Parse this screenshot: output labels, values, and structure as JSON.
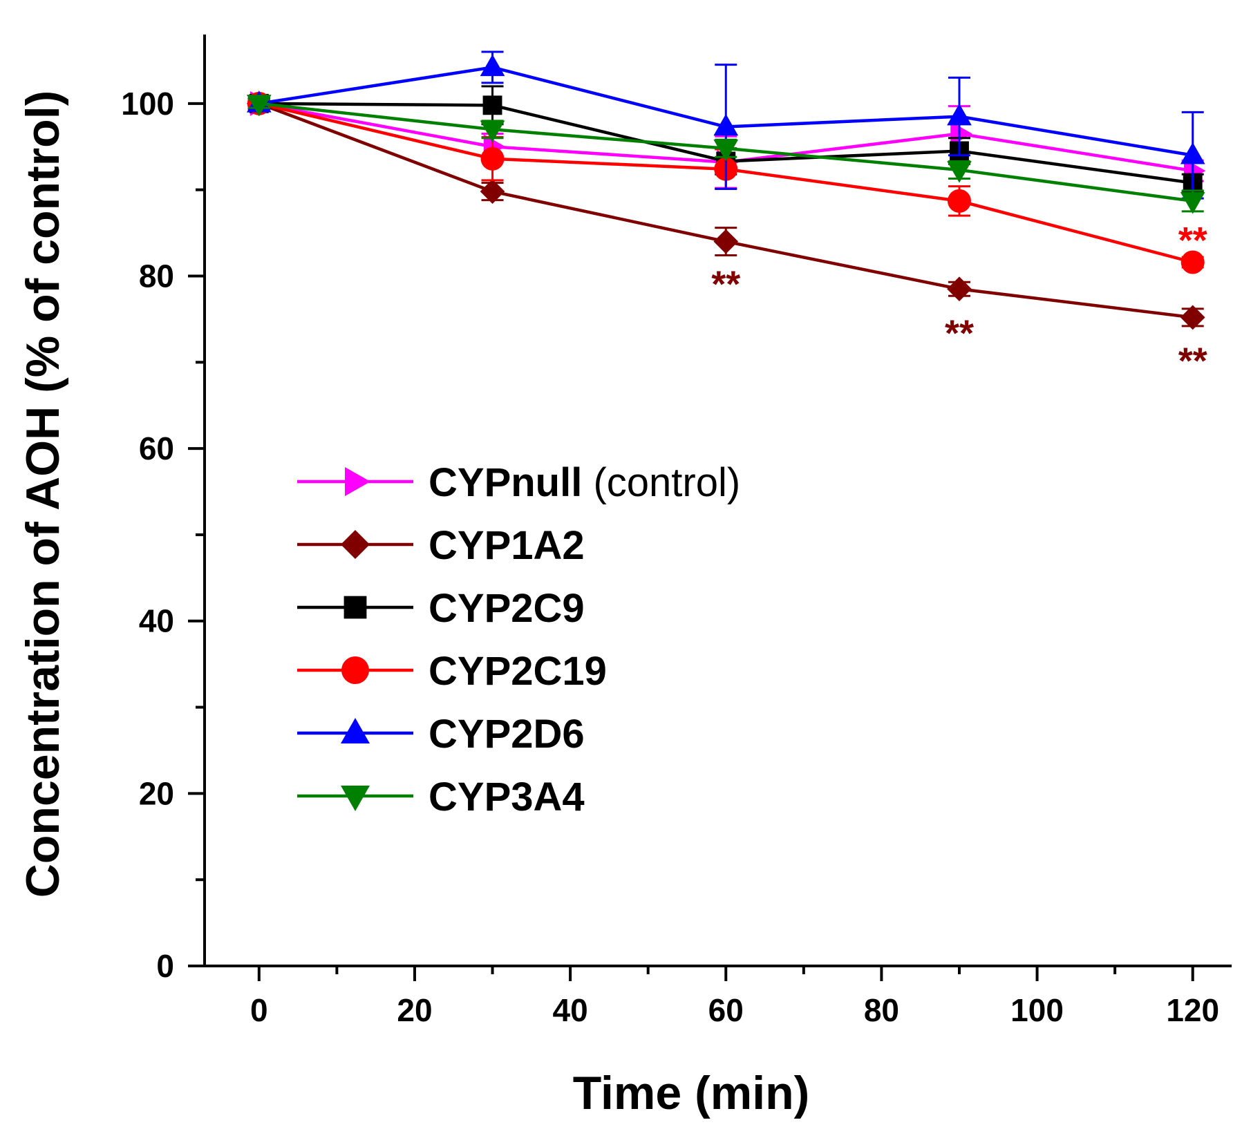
{
  "chart_data": {
    "type": "line",
    "title": "",
    "xlabel": "Time (min)",
    "ylabel": "Concentration of AOH (% of control)",
    "xlim": [
      -7,
      125
    ],
    "ylim": [
      0,
      108
    ],
    "x_ticks_major": [
      0,
      20,
      40,
      60,
      80,
      100,
      120
    ],
    "x_tick_labels": [
      "0",
      "20",
      "40",
      "60",
      "80",
      "100",
      "120"
    ],
    "y_ticks_major": [
      0,
      20,
      40,
      60,
      80,
      100
    ],
    "y_tick_labels": [
      "0",
      "20",
      "40",
      "60",
      "80",
      "100"
    ],
    "x_ticks_minor": [
      10,
      30,
      50,
      70,
      90,
      110
    ],
    "y_ticks_minor": [
      10,
      30,
      50,
      70,
      90
    ],
    "grid": false,
    "legend_position": "center-left",
    "x": [
      0,
      30,
      60,
      90,
      120
    ],
    "series": [
      {
        "name": "CYPnull",
        "suffix": " (control)",
        "color": "#ff00ff",
        "marker": "triangle-right",
        "values": [
          100,
          95.0,
          93.2,
          96.5,
          92.2
        ],
        "errors": [
          0.6,
          1.5,
          3.0,
          3.2,
          1.2
        ]
      },
      {
        "name": "CYP1A2",
        "suffix": "",
        "color": "#800000",
        "marker": "diamond",
        "values": [
          100,
          89.8,
          84.0,
          78.5,
          75.2
        ],
        "errors": [
          0.6,
          1.0,
          1.6,
          0.8,
          1.0
        ]
      },
      {
        "name": "CYP2C9",
        "suffix": "",
        "color": "#000000",
        "marker": "square",
        "values": [
          100,
          99.8,
          93.3,
          94.5,
          90.8
        ],
        "errors": [
          0.5,
          2.2,
          1.5,
          1.5,
          1.0
        ]
      },
      {
        "name": "CYP2C19",
        "suffix": "",
        "color": "#ff0000",
        "marker": "circle",
        "values": [
          100,
          93.6,
          92.4,
          88.7,
          81.6
        ],
        "errors": [
          0.5,
          2.5,
          2.3,
          1.7,
          0.6
        ]
      },
      {
        "name": "CYP2D6",
        "suffix": "",
        "color": "#0000ff",
        "marker": "triangle-up",
        "values": [
          100,
          104.2,
          97.3,
          98.5,
          94.0
        ],
        "errors": [
          0.6,
          1.8,
          7.2,
          4.5,
          5.0
        ]
      },
      {
        "name": "CYP3A4",
        "suffix": "",
        "color": "#008000",
        "marker": "triangle-down",
        "values": [
          100,
          97.0,
          94.8,
          92.3,
          88.7
        ],
        "errors": [
          0.5,
          1.0,
          1.0,
          1.0,
          1.2
        ]
      }
    ],
    "annotations": [
      {
        "text": "**",
        "x": 60,
        "y": 79.2,
        "color": "#800000"
      },
      {
        "text": "**",
        "x": 90,
        "y": 73.5,
        "color": "#800000"
      },
      {
        "text": "**",
        "x": 120,
        "y": 70.3,
        "color": "#800000"
      },
      {
        "text": "**",
        "x": 120,
        "y": 84.3,
        "color": "#ff0000"
      }
    ]
  }
}
